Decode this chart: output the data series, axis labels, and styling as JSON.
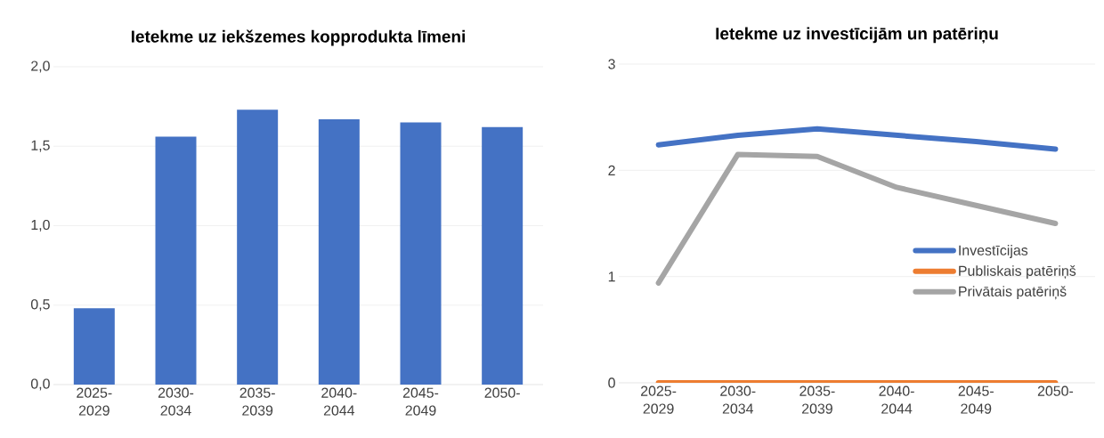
{
  "chart_data": [
    {
      "type": "bar",
      "title": "Ietekme uz iekšzemes kopprodukta līmeni",
      "categories": [
        "2025-2029",
        "2030-2034",
        "2035-2039",
        "2040-2044",
        "2045-2049",
        "2050-"
      ],
      "values": [
        0.48,
        1.56,
        1.73,
        1.67,
        1.65,
        1.62
      ],
      "color": "#4472c4",
      "ylim": [
        0,
        2
      ],
      "yticks": [
        {
          "value": 0,
          "label": "0,0"
        },
        {
          "value": 0.5,
          "label": "0,5"
        },
        {
          "value": 1,
          "label": "1,0"
        },
        {
          "value": 1.5,
          "label": "1,5"
        },
        {
          "value": 2,
          "label": "2,0"
        }
      ],
      "grid": "y"
    },
    {
      "type": "line",
      "title": "Ietekme uz investīcijām un patēriņu",
      "categories": [
        "2025-2029",
        "2030-2034",
        "2035-2039",
        "2040-2044",
        "2045-2049",
        "2050-"
      ],
      "series": [
        {
          "name": "Investīcijas",
          "color": "#4472c4",
          "values": [
            2.24,
            2.33,
            2.39,
            2.33,
            2.27,
            2.2
          ]
        },
        {
          "name": "Publiskais patēriņš",
          "color": "#ed7d31",
          "values": [
            0,
            0,
            0,
            0,
            0,
            0
          ]
        },
        {
          "name": "Privātais patēriņš",
          "color": "#a5a5a5",
          "values": [
            0.94,
            2.15,
            2.13,
            1.84,
            1.67,
            1.5
          ]
        }
      ],
      "ylim": [
        0,
        3
      ],
      "yticks": [
        0,
        1,
        2,
        3
      ],
      "grid": "y",
      "legend": "right",
      "marker": "none",
      "line_style": "solid"
    }
  ]
}
